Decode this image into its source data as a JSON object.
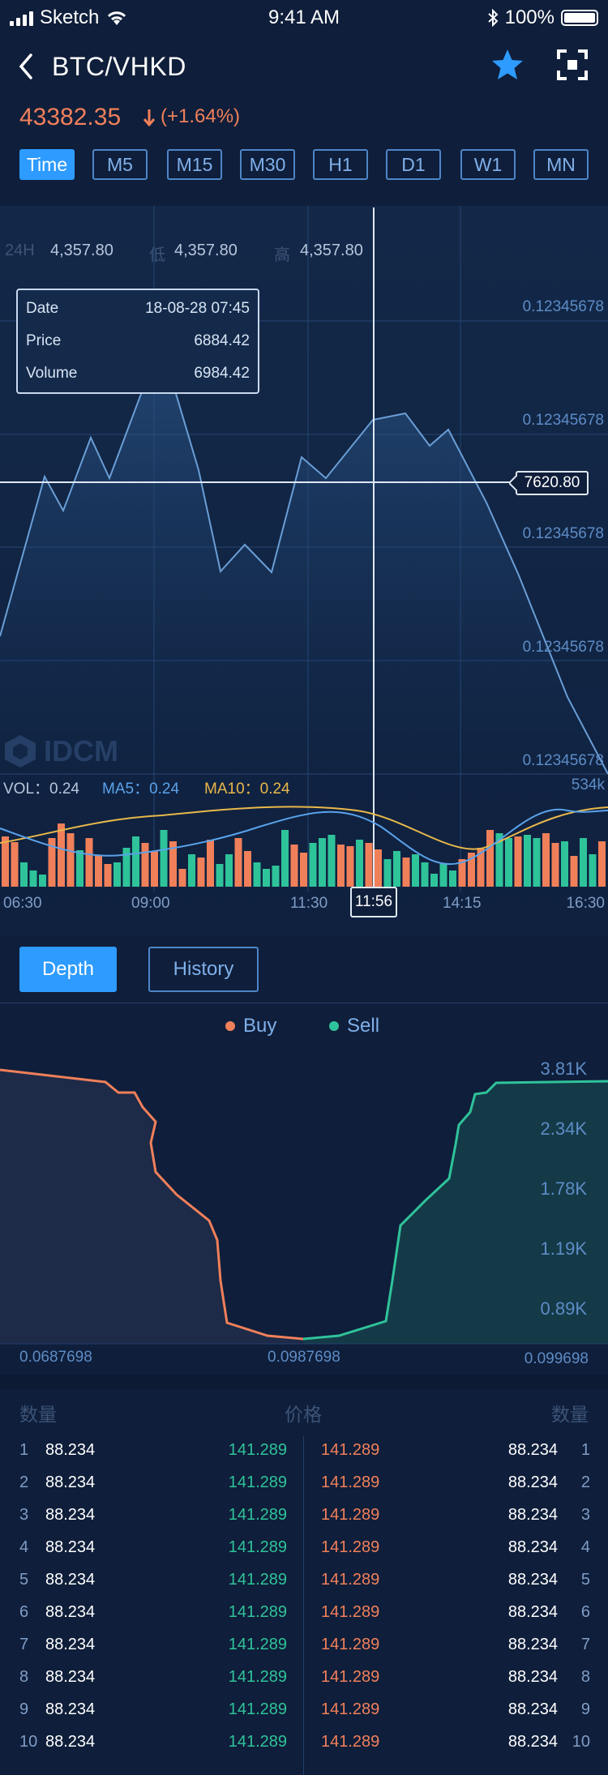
{
  "status": {
    "carrier": "Sketch",
    "time": "9:41 AM",
    "battery": "100%"
  },
  "header": {
    "pair": "BTC/VHKD",
    "price": "43382.35",
    "change": "(+1.64%)"
  },
  "timeframes": [
    "Time",
    "M5",
    "M15",
    "M30",
    "H1",
    "D1",
    "W1",
    "MN"
  ],
  "stats": {
    "k24": "24H",
    "v24": "4,357.80",
    "klow": "低",
    "vlow": "4,357.80",
    "khigh": "高",
    "vhigh": "4,357.80"
  },
  "y_labels": [
    "0.12345678",
    "0.12345678",
    "0.12345678",
    "0.12345678",
    "0.12345678"
  ],
  "tooltip": {
    "date_label": "Date",
    "date_value": "18-08-28 07:45",
    "price_label": "Price",
    "price_value": "6884.42",
    "volume_label": "Volume",
    "volume_value": "6984.42"
  },
  "crosshair_price": "7620.80",
  "watermark": "IDCM",
  "volume": {
    "vol_label": "VOL：0.24",
    "ma5_label": "MA5：0.24",
    "ma10_label": "MA10：0.24",
    "max_label": "534k"
  },
  "time_labels": [
    "06:30",
    "09:00",
    "11:30",
    "11:56",
    "14:15",
    "16:30"
  ],
  "depth_tabs": {
    "depth": "Depth",
    "history": "History"
  },
  "depth_legend": {
    "buy": "Buy",
    "sell": "Sell"
  },
  "depth_y": [
    "3.81K",
    "2.34K",
    "1.78K",
    "1.19K",
    "0.89K"
  ],
  "depth_x": [
    "0.0687698",
    "0.0987698",
    "0.099698"
  ],
  "orderbook": {
    "head_left": "数量",
    "head_mid": "价格",
    "head_right": "数量",
    "rows": [
      {
        "i": "1",
        "qty": "88.234",
        "bid": "141.289",
        "ask": "141.289",
        "qty2": "88.234"
      },
      {
        "i": "2",
        "qty": "88.234",
        "bid": "141.289",
        "ask": "141.289",
        "qty2": "88.234"
      },
      {
        "i": "3",
        "qty": "88.234",
        "bid": "141.289",
        "ask": "141.289",
        "qty2": "88.234"
      },
      {
        "i": "4",
        "qty": "88.234",
        "bid": "141.289",
        "ask": "141.289",
        "qty2": "88.234"
      },
      {
        "i": "5",
        "qty": "88.234",
        "bid": "141.289",
        "ask": "141.289",
        "qty2": "88.234"
      },
      {
        "i": "6",
        "qty": "88.234",
        "bid": "141.289",
        "ask": "141.289",
        "qty2": "88.234"
      },
      {
        "i": "7",
        "qty": "88.234",
        "bid": "141.289",
        "ask": "141.289",
        "qty2": "88.234"
      },
      {
        "i": "8",
        "qty": "88.234",
        "bid": "141.289",
        "ask": "141.289",
        "qty2": "88.234"
      },
      {
        "i": "9",
        "qty": "88.234",
        "bid": "141.289",
        "ask": "141.289",
        "qty2": "88.234"
      },
      {
        "i": "10",
        "qty": "88.234",
        "bid": "141.289",
        "ask": "141.289",
        "qty2": "88.234"
      }
    ]
  },
  "colors": {
    "accent": "#2d9bff",
    "buy": "#f0805a",
    "sell": "#2fc39a",
    "ma10": "#e8b84a",
    "ma5": "#5aa2ea"
  }
}
